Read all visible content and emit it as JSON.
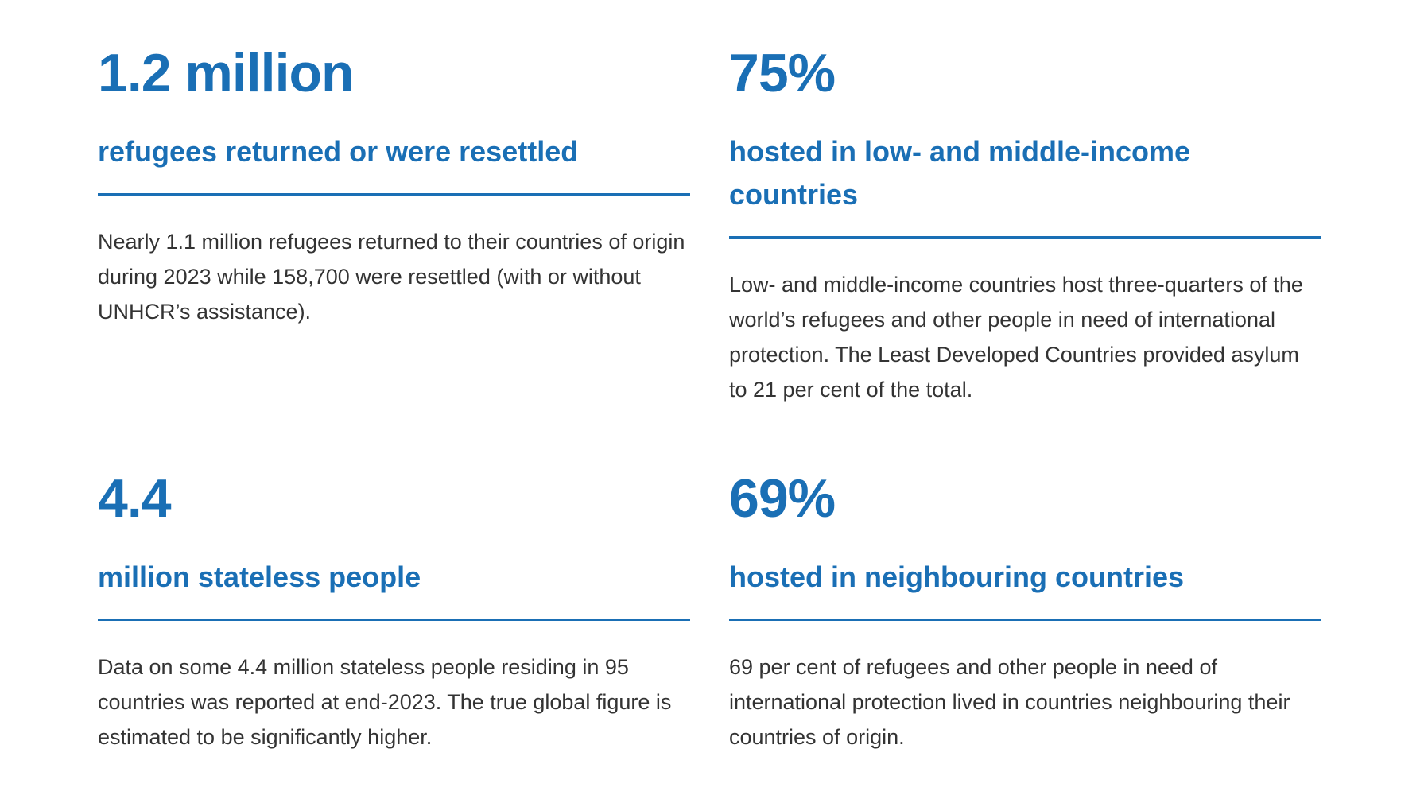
{
  "stats": [
    {
      "value": "1.2 million",
      "subtitle": "refugees returned or were resettled",
      "body": "Nearly 1.1 million refugees returned to their countries of origin during 2023 while 158,700 were resettled (with or without UNHCR’s assistance)."
    },
    {
      "value": "75%",
      "subtitle": "hosted in low- and middle-income countries",
      "body": "Low- and middle-income countries host three-quarters of the world’s refugees and other people in need of international protection. The Least Developed Countries provided asylum to 21 per cent of the total."
    },
    {
      "value": "4.4",
      "subtitle": "million stateless people",
      "body": "Data on some 4.4 million stateless people residing in 95 countries was reported at end-2023. The true global figure is estimated to be significantly higher."
    },
    {
      "value": "69%",
      "subtitle": "hosted in neighbouring countries",
      "body": "69 per cent of refugees and other people in need of international protection lived in countries neighbouring their countries of origin."
    }
  ],
  "colors": {
    "accent": "#1a6fb5",
    "body_text": "#333333",
    "background": "#ffffff"
  }
}
